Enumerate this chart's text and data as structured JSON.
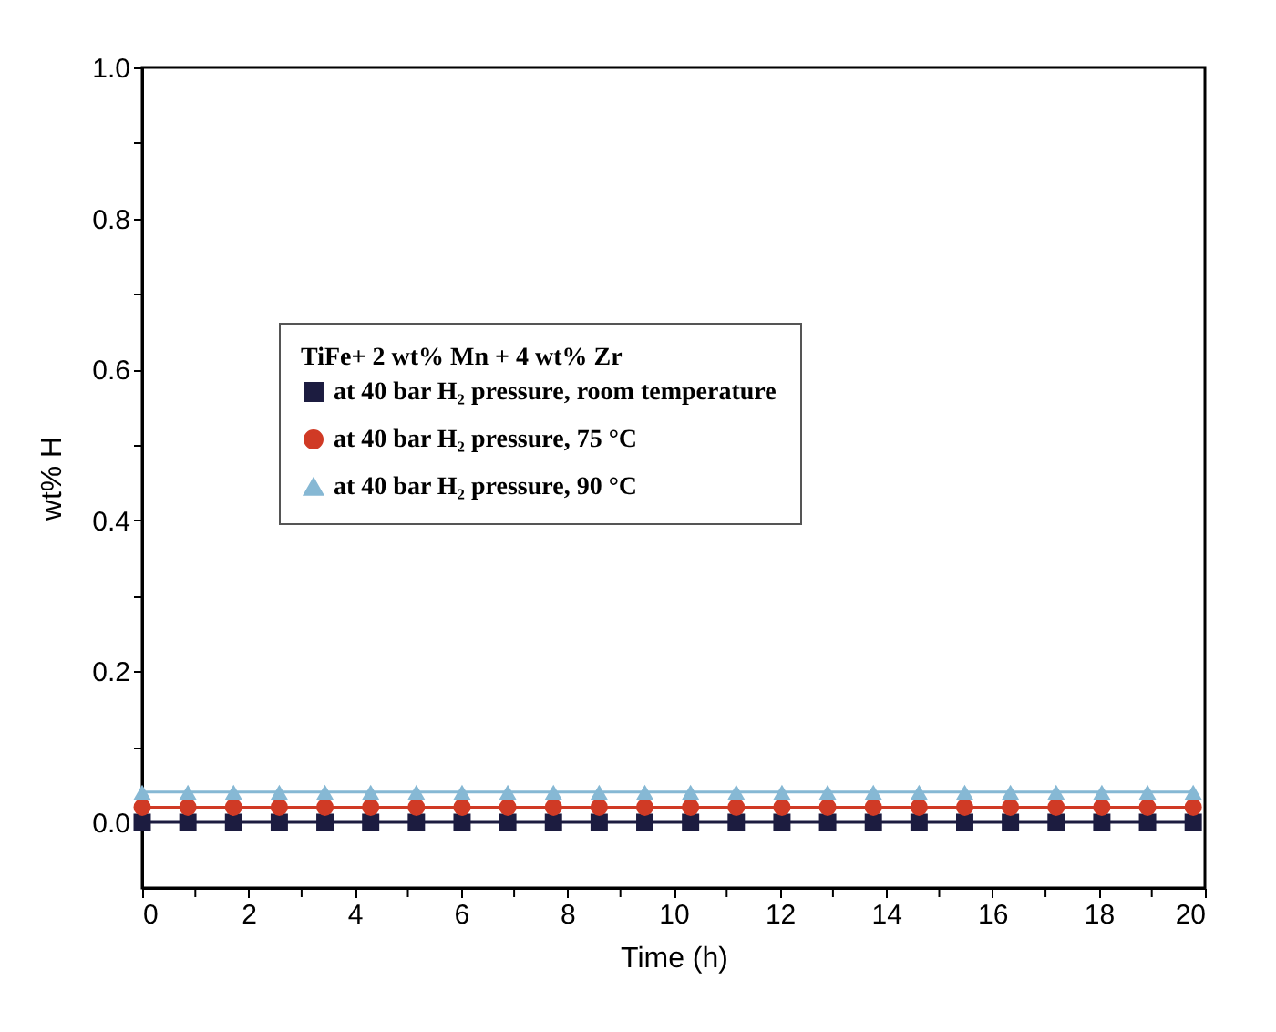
{
  "chart_data": {
    "type": "line",
    "xlabel": "Time (h)",
    "ylabel": "wt% H",
    "legend_title": "TiFe+ 2 wt% Mn + 4 wt% Zr",
    "x": [
      0,
      0.86,
      1.72,
      2.58,
      3.44,
      4.3,
      5.16,
      6.02,
      6.88,
      7.74,
      8.6,
      9.46,
      10.32,
      11.18,
      12.04,
      12.9,
      13.76,
      14.62,
      15.48,
      16.34,
      17.2,
      18.06,
      18.92,
      19.78
    ],
    "series": [
      {
        "name": "at 40 bar H₂ pressure, room temperature",
        "color": "#1c1c40",
        "marker": "square",
        "values": [
          0,
          0,
          0,
          0,
          0,
          0,
          0,
          0,
          0,
          0,
          0,
          0,
          0,
          0,
          0,
          0,
          0,
          0,
          0,
          0,
          0,
          0,
          0,
          0
        ]
      },
      {
        "name": "at 40 bar H₂ pressure, 75 °C",
        "color": "#d03a25",
        "marker": "circle",
        "values": [
          0.02,
          0.02,
          0.02,
          0.02,
          0.02,
          0.02,
          0.02,
          0.02,
          0.02,
          0.02,
          0.02,
          0.02,
          0.02,
          0.02,
          0.02,
          0.02,
          0.02,
          0.02,
          0.02,
          0.02,
          0.02,
          0.02,
          0.02,
          0.02
        ]
      },
      {
        "name": "at 40 bar H₂ pressure, 90 °C",
        "color": "#86b8d4",
        "marker": "triangle",
        "values": [
          0.04,
          0.04,
          0.04,
          0.04,
          0.04,
          0.04,
          0.04,
          0.04,
          0.04,
          0.04,
          0.04,
          0.04,
          0.04,
          0.04,
          0.04,
          0.04,
          0.04,
          0.04,
          0.04,
          0.04,
          0.04,
          0.04,
          0.04,
          0.04
        ]
      }
    ],
    "xlim": [
      0,
      20
    ],
    "ylim": [
      -0.087,
      1.0
    ],
    "xticks": [
      0,
      {
        "value": 1,
        "label": null
      },
      2,
      {
        "value": 3,
        "label": null
      },
      4,
      {
        "value": 5,
        "label": null
      },
      6,
      {
        "value": 7,
        "label": null
      },
      8,
      {
        "value": 9,
        "label": null
      },
      10,
      {
        "value": 11,
        "label": null
      },
      12,
      {
        "value": 13,
        "label": null
      },
      14,
      {
        "value": 15,
        "label": null
      },
      16,
      {
        "value": 17,
        "label": null
      },
      18,
      {
        "value": 19,
        "label": null
      },
      20
    ],
    "yticks": [
      {
        "value": 0,
        "label": "0.0"
      },
      {
        "value": 0.1,
        "label": null
      },
      0.2,
      {
        "value": 0.3,
        "label": null
      },
      0.4,
      {
        "value": 0.5,
        "label": null
      },
      0.6,
      {
        "value": 0.7,
        "label": null
      },
      0.8,
      {
        "value": 0.9,
        "label": null
      },
      {
        "value": 1.0,
        "label": "1.0"
      }
    ],
    "grid": false,
    "legend": "left",
    "line_style": "solid"
  }
}
